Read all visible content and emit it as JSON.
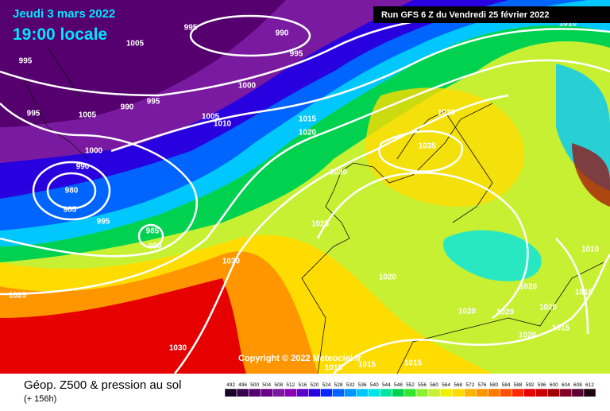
{
  "header": {
    "date": "Jeudi 3 mars 2022",
    "time": "19:00 locale",
    "run": "Run GFS 6 Z du Vendredi 25 février 2022"
  },
  "copyright": "Copyright © 2022 Meteociel.fr",
  "footer": {
    "title": "Géop. Z500 & pression au sol",
    "lead": "(+ 156h)"
  },
  "isobar_labels": [
    995,
    990,
    1005,
    995,
    995,
    1000,
    990,
    995,
    995,
    1005,
    1005,
    1010,
    1015,
    1030,
    1020,
    1035,
    1000,
    990,
    1030,
    980,
    985,
    995,
    1025,
    985,
    990,
    1030,
    1020,
    1010,
    1020,
    1025,
    1015,
    1020,
    1020,
    1020,
    1015,
    1020,
    1030,
    1015,
    1015,
    1015,
    1010
  ],
  "scale": [
    {
      "value": 492,
      "color": "#1a0026"
    },
    {
      "value": 496,
      "color": "#3a0050"
    },
    {
      "value": 500,
      "color": "#55006e"
    },
    {
      "value": 504,
      "color": "#6a0088"
    },
    {
      "value": 508,
      "color": "#7a1aa0"
    },
    {
      "value": 512,
      "color": "#8c00b4"
    },
    {
      "value": 516,
      "color": "#5a00c8"
    },
    {
      "value": 520,
      "color": "#2800e0"
    },
    {
      "value": 524,
      "color": "#0028ff"
    },
    {
      "value": 528,
      "color": "#0064ff"
    },
    {
      "value": 532,
      "color": "#0096ff"
    },
    {
      "value": 536,
      "color": "#00c8ff"
    },
    {
      "value": 540,
      "color": "#00e6e6"
    },
    {
      "value": 544,
      "color": "#00e6a0"
    },
    {
      "value": 548,
      "color": "#00d250"
    },
    {
      "value": 552,
      "color": "#32e632"
    },
    {
      "value": 556,
      "color": "#8cf032"
    },
    {
      "value": 560,
      "color": "#c8f032"
    },
    {
      "value": 564,
      "color": "#f0f000"
    },
    {
      "value": 568,
      "color": "#ffdc00"
    },
    {
      "value": 572,
      "color": "#ffb400"
    },
    {
      "value": 576,
      "color": "#ff9600"
    },
    {
      "value": 580,
      "color": "#ff7800"
    },
    {
      "value": 584,
      "color": "#ff5000"
    },
    {
      "value": 588,
      "color": "#ff2800"
    },
    {
      "value": 592,
      "color": "#e60000"
    },
    {
      "value": 596,
      "color": "#c80000"
    },
    {
      "value": 600,
      "color": "#a00000"
    },
    {
      "value": 604,
      "color": "#820028"
    },
    {
      "value": 608,
      "color": "#5a0032"
    },
    {
      "value": 612,
      "color": "#200010"
    }
  ]
}
